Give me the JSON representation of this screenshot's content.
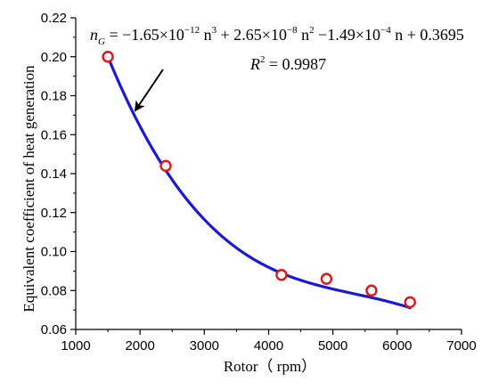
{
  "chart_data": {
    "type": "scatter",
    "xlabel": "Rotor（ rpm）",
    "ylabel": "Equivalent coefficient of heat generation",
    "xlim": [
      1000,
      7000
    ],
    "ylim": [
      0.06,
      0.22
    ],
    "x_ticks": [
      "1000",
      "2000",
      "3000",
      "4000",
      "5000",
      "6000",
      "7000"
    ],
    "y_ticks": [
      "0.06",
      "0.08",
      "0.10",
      "0.12",
      "0.14",
      "0.16",
      "0.18",
      "0.20",
      "0.22"
    ],
    "series": [
      {
        "kind": "points",
        "color": "#e8121b",
        "x": [
          1500,
          2400,
          4200,
          4900,
          5600,
          6200
        ],
        "y": [
          0.2,
          0.144,
          0.088,
          0.086,
          0.08,
          0.074
        ]
      },
      {
        "kind": "fit",
        "color": "#1a1ad4",
        "coefficients": [
          -1.65e-12,
          2.65e-08,
          -0.000149,
          0.3695
        ],
        "x_range": [
          1500,
          6200
        ]
      }
    ],
    "annotation": {
      "equation_lhs": "n",
      "equation_lhs_sub": "G",
      "equation_rhs_parts": [
        {
          "t": " = −1.65×10"
        },
        {
          "sup": "−12"
        },
        {
          "t": " n"
        },
        {
          "sup": "3"
        },
        {
          "t": " + 2.65×10"
        },
        {
          "sup": "−8"
        },
        {
          "t": " n"
        },
        {
          "sup": "2"
        },
        {
          "t": " −1.49×10"
        },
        {
          "sup": "−4"
        },
        {
          "t": " n + 0.3695"
        }
      ],
      "r2_label": "R",
      "r2_sup": "2",
      "r2_value": " = 0.9987"
    }
  }
}
